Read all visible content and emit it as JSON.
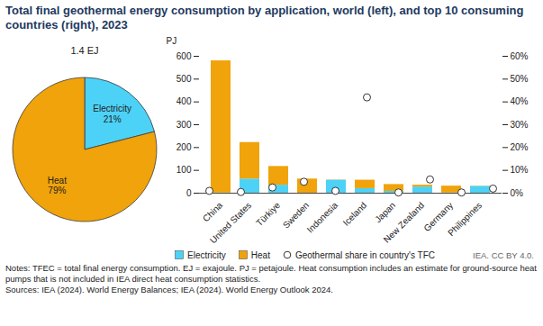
{
  "title": "Total final geothermal energy consumption by application, world (left), and top 10 consuming countries (right), 2023",
  "chart_data": [
    {
      "type": "pie",
      "title": "1.4 EJ",
      "categories": [
        "Electricity",
        "Heat"
      ],
      "values": [
        21,
        79
      ],
      "value_labels": [
        "21%",
        "79%"
      ],
      "colors": [
        "#4dd2f7",
        "#f0a30a"
      ],
      "data_labels": true
    },
    {
      "type": "bar",
      "stacked": true,
      "y_label": "PJ",
      "categories": [
        "China",
        "United States",
        "Türkiye",
        "Sweden",
        "Indonesia",
        "Iceland",
        "Japan",
        "New Zealand",
        "Germany",
        "Philippines"
      ],
      "series": [
        {
          "name": "Electricity",
          "type": "bar",
          "color": "#4dd2f7",
          "values": [
            1,
            62,
            35,
            0,
            57,
            20,
            8,
            27,
            1,
            30
          ]
        },
        {
          "name": "Heat",
          "type": "bar",
          "color": "#f0a30a",
          "values": [
            579,
            160,
            82,
            62,
            1,
            37,
            30,
            8,
            30,
            1
          ]
        },
        {
          "name": "Geothermal share in country's TFC",
          "type": "scatter",
          "axis": "y2",
          "marker": "circle",
          "color": "#ffffff",
          "values": [
            1,
            0.5,
            2.5,
            5,
            1,
            42,
            0.3,
            6,
            0.3,
            2
          ]
        }
      ],
      "ylim": [
        0,
        600
      ],
      "yticks": [
        0,
        100,
        200,
        300,
        400,
        500,
        600
      ],
      "y2lim": [
        0,
        60
      ],
      "y2ticks": [
        {
          "value": 0,
          "label": "0%"
        },
        {
          "value": 10,
          "label": "10%"
        },
        {
          "value": 20,
          "label": "20%"
        },
        {
          "value": 30,
          "label": "30%"
        },
        {
          "value": 40,
          "label": "40%"
        },
        {
          "value": 50,
          "label": "50%"
        },
        {
          "value": 60,
          "label": "60%"
        }
      ],
      "grid": false,
      "legend": "bottom"
    }
  ],
  "credit": "IEA. CC BY 4.0.",
  "notes": "Notes: TFEC = total final energy consumption. EJ = exajoule. PJ = petajoule. Heat consumption includes an estimate for ground-source heat pumps that is not included in IEA direct heat consumption statistics.",
  "sources": "Sources: IEA (2024). World Energy Balances; IEA (2024). World Energy Outlook 2024."
}
